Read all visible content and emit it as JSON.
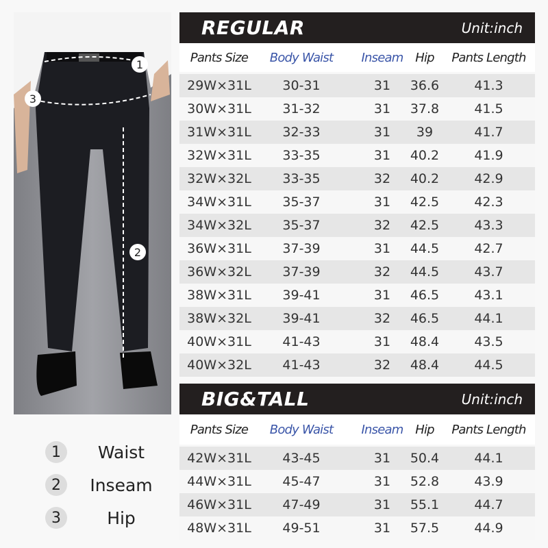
{
  "legend": [
    {
      "num": "1",
      "label": "Waist"
    },
    {
      "num": "2",
      "label": "Inseam"
    },
    {
      "num": "3",
      "label": "Hip"
    }
  ],
  "columns": [
    "Pants Size",
    "Body Waist",
    "Inseam",
    "Hip",
    "Pants Length"
  ],
  "accent_color": "#3a55a8",
  "regular": {
    "title": "REGULAR",
    "unit": "Unit:inch",
    "rows": [
      [
        "29W×31L",
        "30-31",
        "31",
        "36.6",
        "41.3"
      ],
      [
        "30W×31L",
        "31-32",
        "31",
        "37.8",
        "41.5"
      ],
      [
        "31W×31L",
        "32-33",
        "31",
        "39",
        "41.7"
      ],
      [
        "32W×31L",
        "33-35",
        "31",
        "40.2",
        "41.9"
      ],
      [
        "32W×32L",
        "33-35",
        "32",
        "40.2",
        "42.9"
      ],
      [
        "34W×31L",
        "35-37",
        "31",
        "42.5",
        "42.3"
      ],
      [
        "34W×32L",
        "35-37",
        "32",
        "42.5",
        "43.3"
      ],
      [
        "36W×31L",
        "37-39",
        "31",
        "44.5",
        "42.7"
      ],
      [
        "36W×32L",
        "37-39",
        "32",
        "44.5",
        "43.7"
      ],
      [
        "38W×31L",
        "39-41",
        "31",
        "46.5",
        "43.1"
      ],
      [
        "38W×32L",
        "39-41",
        "32",
        "46.5",
        "44.1"
      ],
      [
        "40W×31L",
        "41-43",
        "31",
        "48.4",
        "43.5"
      ],
      [
        "40W×32L",
        "41-43",
        "32",
        "48.4",
        "44.5"
      ]
    ]
  },
  "bigtall": {
    "title": "BIG&TALL",
    "unit": "Unit:inch",
    "rows": [
      [
        "42W×31L",
        "43-45",
        "31",
        "50.4",
        "44.1"
      ],
      [
        "44W×31L",
        "45-47",
        "31",
        "52.8",
        "43.9"
      ],
      [
        "46W×31L",
        "47-49",
        "31",
        "55.1",
        "44.7"
      ],
      [
        "48W×31L",
        "49-51",
        "31",
        "57.5",
        "44.9"
      ]
    ]
  }
}
